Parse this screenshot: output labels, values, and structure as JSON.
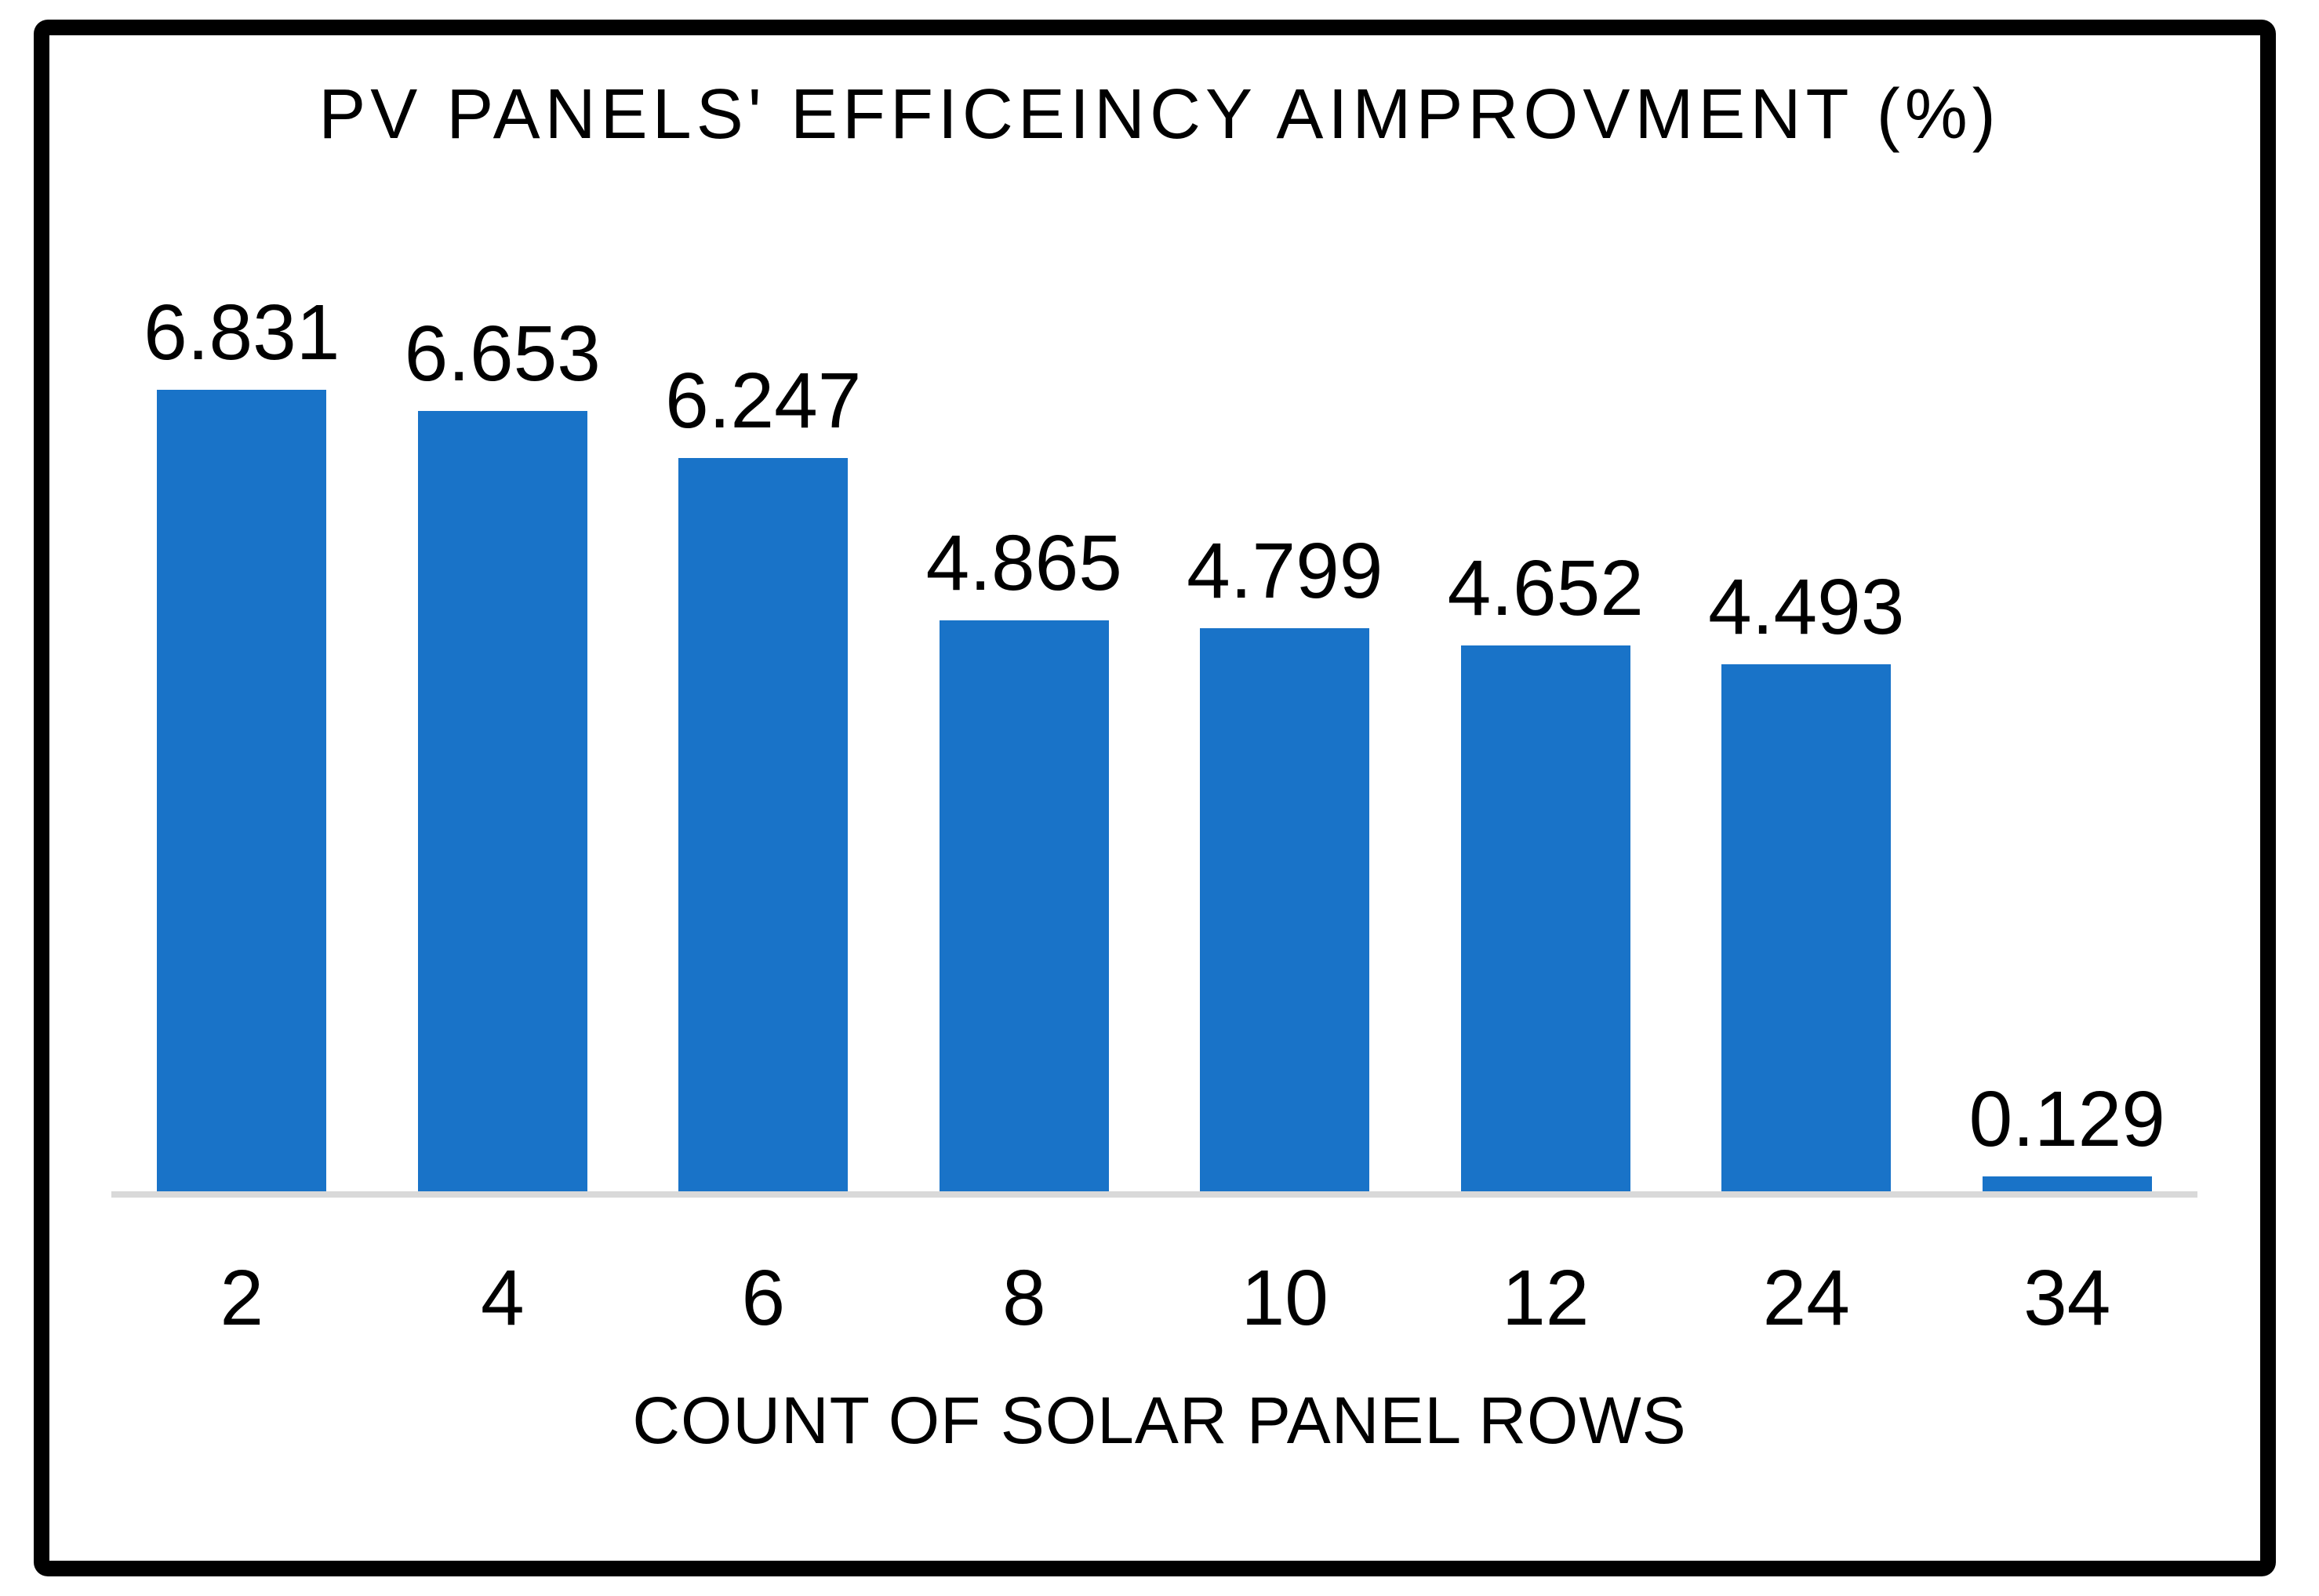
{
  "chart_data": {
    "type": "bar",
    "title": "PV PANELS' EFFICEINCY AIMPROVMENT (%)",
    "xlabel": "COUNT OF SOLAR PANEL ROWS",
    "ylabel": "",
    "categories": [
      "2",
      "4",
      "6",
      "8",
      "10",
      "12",
      "24",
      "34"
    ],
    "values": [
      6.831,
      6.653,
      6.247,
      4.865,
      4.799,
      4.652,
      4.493,
      0.129
    ],
    "data_labels": [
      "6.831",
      "6.653",
      "6.247",
      "4.865",
      "4.799",
      "4.652",
      "4.493",
      "0.129"
    ],
    "ylim": [
      0,
      7.3
    ],
    "grid": false,
    "legend": false,
    "y_axis_shown": false,
    "bar_color": "#1973C8",
    "axis_line_color": "#D9D9D9",
    "text_color": "#000000",
    "border_color": "#000000",
    "background_color": "#FFFFFF"
  }
}
